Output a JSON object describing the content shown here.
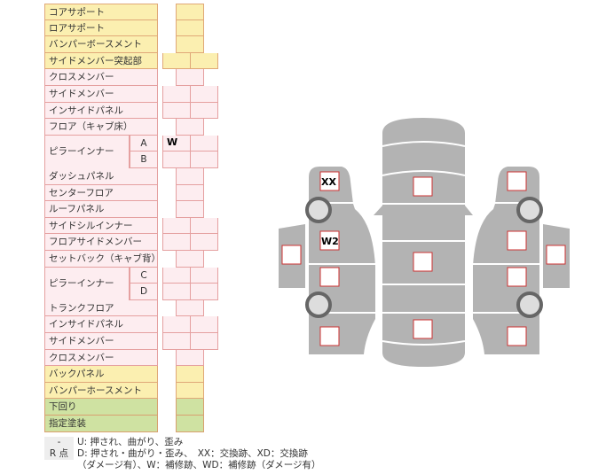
{
  "rows": [
    {
      "label": "コアサポート",
      "type": "single",
      "color": "yellow",
      "cells": [
        ""
      ]
    },
    {
      "label": "ロアサポート",
      "type": "single",
      "color": "yellow",
      "cells": [
        ""
      ]
    },
    {
      "label": "バンパーボースメント",
      "type": "single",
      "color": "yellow",
      "cells": [
        ""
      ]
    },
    {
      "label": "サイドメンバー突起部",
      "type": "double",
      "color": "yellow",
      "cells": [
        "",
        ""
      ]
    },
    {
      "label": "クロスメンバー",
      "type": "single",
      "color": "pink",
      "cells": [
        ""
      ]
    },
    {
      "label": "サイドメンバー",
      "type": "double",
      "color": "pink",
      "cells": [
        "",
        ""
      ]
    },
    {
      "label": "インサイドパネル",
      "type": "double",
      "color": "pink",
      "cells": [
        "",
        ""
      ]
    },
    {
      "label": "フロア（キャブ床）",
      "type": "single",
      "color": "pink",
      "cells": [
        ""
      ]
    },
    {
      "label": "ピラーインナー",
      "sub": "A",
      "type": "double",
      "color": "pink",
      "cells": [
        "W",
        ""
      ]
    },
    {
      "label": "",
      "sub": "B",
      "type": "double",
      "color": "pink",
      "cells": [
        "",
        ""
      ]
    },
    {
      "label": "ダッシュパネル",
      "type": "single",
      "color": "pink",
      "cells": [
        ""
      ]
    },
    {
      "label": "センターフロア",
      "type": "single",
      "color": "pink",
      "cells": [
        ""
      ]
    },
    {
      "label": "ルーフパネル",
      "type": "single",
      "color": "pink",
      "cells": [
        ""
      ]
    },
    {
      "label": "サイドシルインナー",
      "type": "double",
      "color": "pink",
      "cells": [
        "",
        ""
      ]
    },
    {
      "label": "フロアサイドメンバー",
      "type": "double",
      "color": "pink",
      "cells": [
        "",
        ""
      ]
    },
    {
      "label": "セットバック（キャブ背）",
      "type": "single",
      "color": "pink",
      "cells": [
        ""
      ]
    },
    {
      "label": "ピラーインナー",
      "sub": "C",
      "type": "double",
      "color": "pink",
      "cells": [
        "",
        ""
      ]
    },
    {
      "label": "",
      "sub": "D",
      "type": "double",
      "color": "pink",
      "cells": [
        "",
        ""
      ]
    },
    {
      "label": "トランクフロア",
      "type": "single",
      "color": "pink",
      "cells": [
        ""
      ]
    },
    {
      "label": "インサイドパネル",
      "type": "double",
      "color": "pink",
      "cells": [
        "",
        ""
      ]
    },
    {
      "label": "サイドメンバー",
      "type": "double",
      "color": "pink",
      "cells": [
        "",
        ""
      ]
    },
    {
      "label": "クロスメンバー",
      "type": "single",
      "color": "pink",
      "cells": [
        ""
      ]
    },
    {
      "label": "バックパネル",
      "type": "single",
      "color": "yellow",
      "cells": [
        ""
      ]
    },
    {
      "label": "バンパーホースメント",
      "type": "single",
      "color": "yellow",
      "cells": [
        ""
      ]
    },
    {
      "label": "下回り",
      "type": "single",
      "color": "green",
      "cells": [
        ""
      ]
    },
    {
      "label": "指定塗装",
      "type": "single",
      "color": "green",
      "cells": [
        ""
      ]
    }
  ],
  "diagram": {
    "marks": {
      "left_front_fender": "XX",
      "left_front_door": "W2",
      "left_rear_door": "",
      "left_quarter": "",
      "left_side": "",
      "hood": "",
      "roof": "",
      "trunk": "",
      "right_front_fender": "",
      "right_front_door": "",
      "right_rear_door": "",
      "right_quarter": "",
      "right_side": ""
    },
    "body_color": "#b3b3b3",
    "box_border": "#cc3333"
  },
  "legend": [
    {
      "key": "-",
      "text": "U: 押され、曲がり、歪み"
    },
    {
      "key": "R 点",
      "text": "D: 押され・曲がり・歪み、　XX：交換跡、XD：交換跡"
    },
    {
      "key": "",
      "text": "（ダメージ有）、W：補修跡、WD：補修跡（ダメージ有）"
    }
  ]
}
